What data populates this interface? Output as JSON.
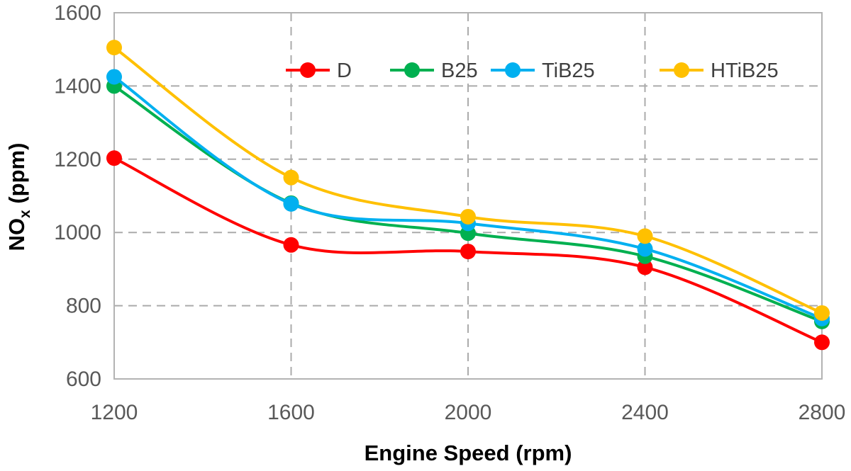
{
  "chart_data": {
    "type": "line",
    "smooth": true,
    "x": [
      1200,
      1600,
      2000,
      2400,
      2800
    ],
    "xlabel": "Engine Speed (rpm)",
    "ylabel": {
      "main": "NO",
      "sub": "x",
      "unit": " (ppm)"
    },
    "xlim": [
      1200,
      2800
    ],
    "ylim": [
      600,
      1600
    ],
    "xticks": [
      1200,
      1600,
      2000,
      2400,
      2800
    ],
    "yticks": [
      600,
      800,
      1000,
      1200,
      1400,
      1600
    ],
    "grid": "dashed",
    "legend_position": "top-right",
    "series": [
      {
        "name": "D",
        "color": "#ff0000",
        "values": [
          1203,
          966,
          948,
          905,
          700
        ]
      },
      {
        "name": "B25",
        "color": "#00b050",
        "values": [
          1400,
          1080,
          998,
          935,
          757
        ]
      },
      {
        "name": "TiB25",
        "color": "#00b0f0",
        "values": [
          1425,
          1078,
          1025,
          955,
          765
        ]
      },
      {
        "name": "HTiB25",
        "color": "#ffc000",
        "values": [
          1505,
          1150,
          1043,
          990,
          780
        ]
      }
    ]
  }
}
